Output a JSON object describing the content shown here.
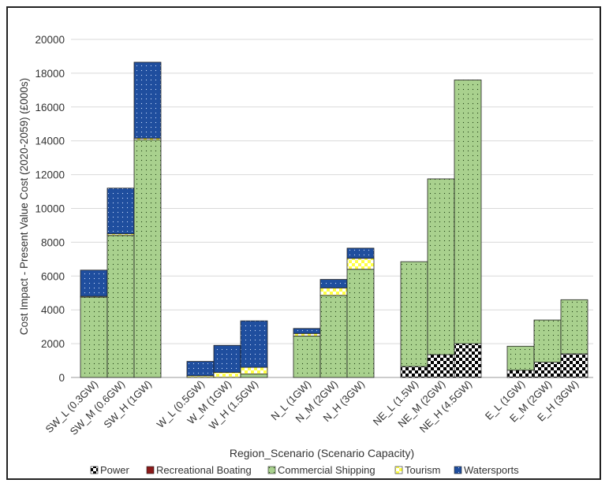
{
  "chart_data": {
    "type": "bar",
    "stacked": true,
    "title": "",
    "xlabel": "Region_Scenario (Scenario Capacity)",
    "ylabel": "Cost Impact - Present Value Cost (2020-2059) (£000s)",
    "ylim": [
      0,
      20000
    ],
    "yticks": [
      0,
      2000,
      4000,
      6000,
      8000,
      10000,
      12000,
      14000,
      16000,
      18000,
      20000
    ],
    "grid": true,
    "legend_position": "bottom",
    "groups": [
      [
        "SW_L (0.3GW)",
        "SW_M (0.6GW)",
        "SW_H (1GW)"
      ],
      [
        "W_L (0.5GW)",
        "W_M (1GW)",
        "W_H (1.5GW)"
      ],
      [
        "N_L (1GW)",
        "N_M (2GW)",
        "N_H (3GW)"
      ],
      [
        "NE_L (1.5W)",
        "NE_M (2GW)",
        "NE_H (4.5GW)"
      ],
      [
        "E_L (1GW)",
        "E_M (2GW)",
        "E_H (3GW)"
      ]
    ],
    "categories": [
      "SW_L (0.3GW)",
      "SW_M (0.6GW)",
      "SW_H (1GW)",
      "W_L (0.5GW)",
      "W_M (1GW)",
      "W_H (1.5GW)",
      "N_L (1GW)",
      "N_M (2GW)",
      "N_H (3GW)",
      "NE_L (1.5W)",
      "NE_M (2GW)",
      "NE_H (4.5GW)",
      "E_L (1GW)",
      "E_M (2GW)",
      "E_H (3GW)"
    ],
    "series": [
      {
        "name": "Power",
        "color": "#000000",
        "pattern": "checker",
        "values": [
          0,
          0,
          0,
          0,
          0,
          0,
          0,
          0,
          0,
          650,
          1350,
          2000,
          430,
          900,
          1400
        ]
      },
      {
        "name": "Recreational Boating",
        "color": "#8b1a1a",
        "pattern": "solid",
        "values": [
          0,
          0,
          0,
          0,
          0,
          0,
          0,
          0,
          0,
          0,
          0,
          0,
          0,
          0,
          0
        ]
      },
      {
        "name": "Commercial Shipping",
        "color": "#a9d18e",
        "pattern": "dots",
        "values": [
          4750,
          8400,
          14050,
          0,
          0,
          200,
          2450,
          4850,
          6400,
          6200,
          10400,
          15600,
          1420,
          2500,
          3200
        ]
      },
      {
        "name": "Tourism",
        "color": "#ffff66",
        "pattern": "checker",
        "values": [
          50,
          100,
          100,
          100,
          300,
          400,
          150,
          450,
          650,
          0,
          0,
          0,
          0,
          0,
          0
        ]
      },
      {
        "name": "Watersports",
        "color": "#1f4e9e",
        "pattern": "dots",
        "values": [
          1550,
          2700,
          4500,
          850,
          1600,
          2750,
          300,
          500,
          600,
          0,
          0,
          0,
          0,
          0,
          0
        ]
      }
    ]
  }
}
